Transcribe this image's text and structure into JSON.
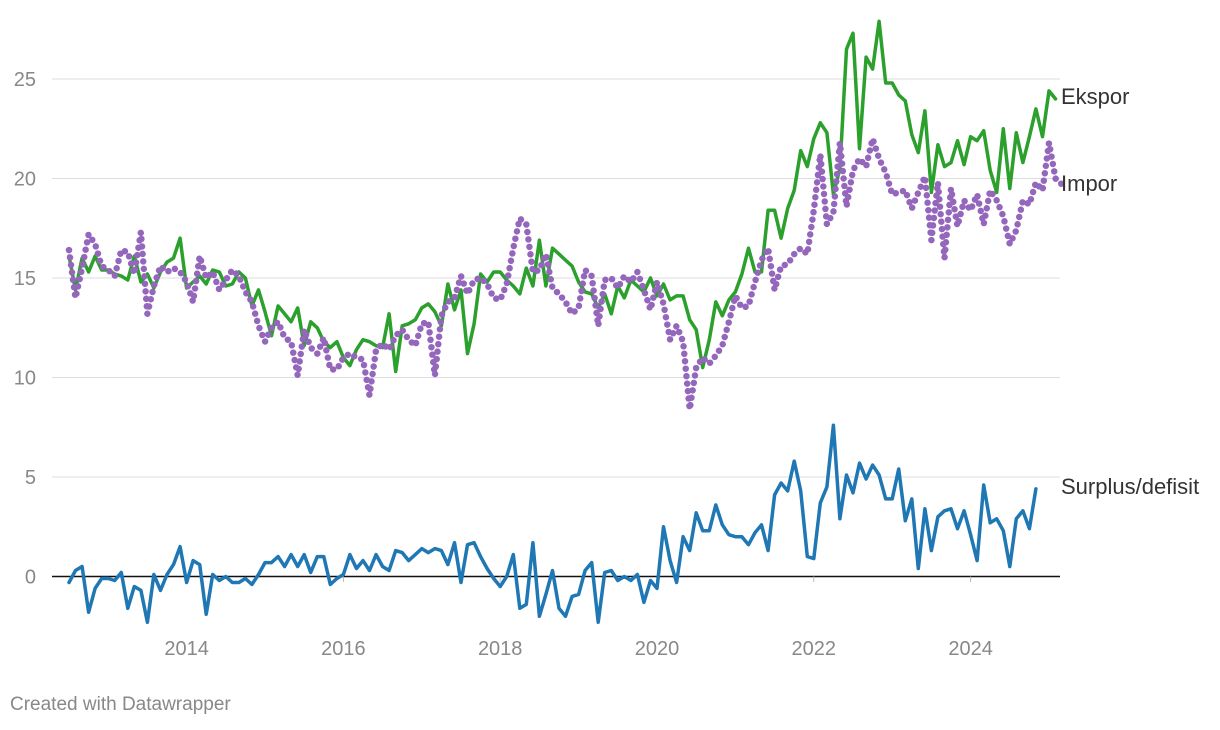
{
  "footer": {
    "credit": "Created with Datawrapper"
  },
  "colors": {
    "exports": "#2ca02c",
    "imports": "#9467bd",
    "balance": "#1f77b4",
    "grid": "#dddddd",
    "zero_line": "#111111",
    "tick_text": "#888888",
    "label_text": "#333333"
  },
  "chart_data": {
    "type": "line",
    "title": "",
    "xlabel": "",
    "ylabel": "",
    "x_start": "2012-07",
    "x_end": "2024-11",
    "ylim": [
      -3,
      28
    ],
    "yticks": [
      0,
      5,
      10,
      15,
      20,
      25
    ],
    "xticks": [
      "2014",
      "2016",
      "2018",
      "2020",
      "2022",
      "2024"
    ],
    "grid": true,
    "legend": "direct labels at right end of lines",
    "series": [
      {
        "name": "Ekspor",
        "style": "solid",
        "color": "#2ca02c",
        "values": [
          16.1,
          14.4,
          16.0,
          15.3,
          16.1,
          15.4,
          15.4,
          15.2,
          15.1,
          14.9,
          16.1,
          14.8,
          15.2,
          14.5,
          15.3,
          15.8,
          16.0,
          17.0,
          14.5,
          14.8,
          15.1,
          14.7,
          15.4,
          15.3,
          14.6,
          14.7,
          15.3,
          15.0,
          13.6,
          14.4,
          13.3,
          12.1,
          13.6,
          13.2,
          12.8,
          13.5,
          11.6,
          12.8,
          12.5,
          11.8,
          11.5,
          11.8,
          11.0,
          10.6,
          11.4,
          11.9,
          11.8,
          11.6,
          11.5,
          13.2,
          10.3,
          12.6,
          12.7,
          12.9,
          13.5,
          13.7,
          13.3,
          12.6,
          14.7,
          13.4,
          14.4,
          11.2,
          12.7,
          15.2,
          14.8,
          15.3,
          15.3,
          14.9,
          14.6,
          14.2,
          15.5,
          14.6,
          16.9,
          14.6,
          16.5,
          16.2,
          15.9,
          15.6,
          14.8,
          14.3,
          14.2,
          13.5,
          14.2,
          13.2,
          14.6,
          14.0,
          14.9,
          14.6,
          14.3,
          15.0,
          14.1,
          14.7,
          13.9,
          14.1,
          14.1,
          12.9,
          12.4,
          10.5,
          11.9,
          13.8,
          13.1,
          13.9,
          14.3,
          15.2,
          16.5,
          15.3,
          15.3,
          18.4,
          18.4,
          17.0,
          18.5,
          19.4,
          21.4,
          20.6,
          22.0,
          22.8,
          22.3,
          19.2,
          20.5,
          26.5,
          27.3,
          21.5,
          26.1,
          25.5,
          27.9,
          24.8,
          24.8,
          24.2,
          23.9,
          22.2,
          21.3,
          23.4,
          19.3,
          21.7,
          20.6,
          20.8,
          21.9,
          20.7,
          22.1,
          21.9,
          22.4,
          20.4,
          19.3,
          22.5,
          19.5,
          22.3,
          20.8,
          22.1,
          23.5,
          22.1,
          24.4,
          24.0
        ]
      },
      {
        "name": "Impor",
        "style": "dotted",
        "color": "#9467bd",
        "values": [
          16.4,
          14.0,
          15.5,
          17.2,
          16.7,
          15.6,
          15.4,
          15.1,
          16.4,
          16.3,
          15.2,
          17.3,
          13.2,
          14.6,
          15.6,
          15.3,
          15.5,
          15.3,
          14.8,
          13.8,
          16.1,
          15.0,
          15.3,
          14.4,
          14.9,
          15.4,
          15.1,
          14.3,
          13.8,
          12.6,
          11.8,
          12.5,
          12.8,
          12.0,
          11.8,
          10.1,
          12.4,
          11.5,
          11.2,
          12.0,
          10.4,
          10.4,
          11.0,
          11.2,
          11.0,
          10.9,
          9.1,
          11.4,
          11.7,
          11.4,
          12.1,
          12.4,
          11.9,
          11.6,
          12.7,
          12.8,
          10.1,
          13.1,
          13.8,
          14.0,
          15.1,
          14.2,
          14.9,
          15.0,
          14.7,
          14.0,
          13.9,
          14.7,
          16.5,
          18.0,
          17.7,
          15.3,
          15.4,
          16.2,
          14.5,
          14.2,
          13.8,
          13.2,
          13.5,
          15.4,
          15.1,
          12.6,
          14.9,
          15.0,
          14.5,
          15.1,
          14.8,
          15.3,
          14.4,
          13.4,
          14.8,
          13.7,
          11.9,
          12.6,
          11.8,
          8.4,
          10.5,
          11.0,
          10.7,
          11.1,
          11.6,
          12.8,
          14.1,
          13.5,
          13.6,
          14.8,
          15.9,
          16.5,
          14.4,
          15.6,
          15.7,
          16.2,
          16.5,
          16.2,
          18.4,
          21.2,
          17.7,
          18.3,
          21.8,
          18.6,
          20.4,
          21.0,
          20.6,
          22.0,
          21.0,
          20.3,
          19.2,
          19.3,
          19.4,
          18.5,
          19.3,
          20.1,
          16.9,
          19.8,
          16.0,
          19.5,
          17.6,
          18.9,
          18.4,
          19.2,
          17.7,
          19.4,
          18.9,
          18.1,
          16.7,
          17.4,
          18.9,
          18.7,
          19.8,
          19.4,
          21.8,
          20.0,
          19.7
        ]
      },
      {
        "name": "Surplus/defisit",
        "style": "solid",
        "color": "#1f77b4",
        "values": [
          -0.3,
          0.3,
          0.5,
          -1.8,
          -0.6,
          -0.1,
          -0.1,
          -0.2,
          0.2,
          -1.6,
          -0.5,
          -0.7,
          -2.3,
          0.1,
          -0.7,
          0.1,
          0.6,
          1.5,
          -0.3,
          0.8,
          0.6,
          -1.9,
          0.1,
          -0.2,
          0.0,
          -0.3,
          -0.3,
          -0.1,
          -0.4,
          0.1,
          0.7,
          0.7,
          1.0,
          0.5,
          1.1,
          0.5,
          1.1,
          0.2,
          1.0,
          1.0,
          -0.4,
          -0.1,
          0.1,
          1.1,
          0.4,
          0.8,
          0.3,
          1.1,
          0.5,
          0.3,
          1.3,
          1.2,
          0.8,
          1.1,
          1.4,
          1.2,
          1.4,
          1.3,
          0.6,
          1.7,
          -0.3,
          1.6,
          1.7,
          1.0,
          0.4,
          -0.1,
          -0.5,
          0.0,
          1.1,
          -1.6,
          -1.4,
          1.7,
          -2.0,
          -0.9,
          0.3,
          -1.6,
          -2.0,
          -1.0,
          -0.9,
          0.3,
          0.7,
          -2.3,
          0.2,
          0.3,
          -0.2,
          0.0,
          -0.2,
          0.1,
          -1.3,
          -0.2,
          -0.6,
          2.5,
          0.8,
          -0.3,
          2.0,
          1.3,
          3.2,
          2.3,
          2.3,
          3.6,
          2.6,
          2.1,
          2.0,
          2.0,
          1.6,
          2.2,
          2.6,
          1.3,
          4.1,
          4.7,
          4.3,
          5.8,
          4.3,
          1.0,
          0.9,
          3.7,
          4.5,
          7.6,
          2.9,
          5.1,
          4.2,
          5.7,
          4.9,
          5.6,
          5.1,
          3.9,
          3.9,
          5.4,
          2.8,
          3.9,
          0.4,
          3.4,
          1.3,
          3.0,
          3.3,
          3.4,
          2.4,
          3.3,
          2.1,
          0.8,
          4.6,
          2.7,
          2.9,
          2.3,
          0.5,
          2.9,
          3.3,
          2.4,
          4.4
        ]
      }
    ]
  }
}
